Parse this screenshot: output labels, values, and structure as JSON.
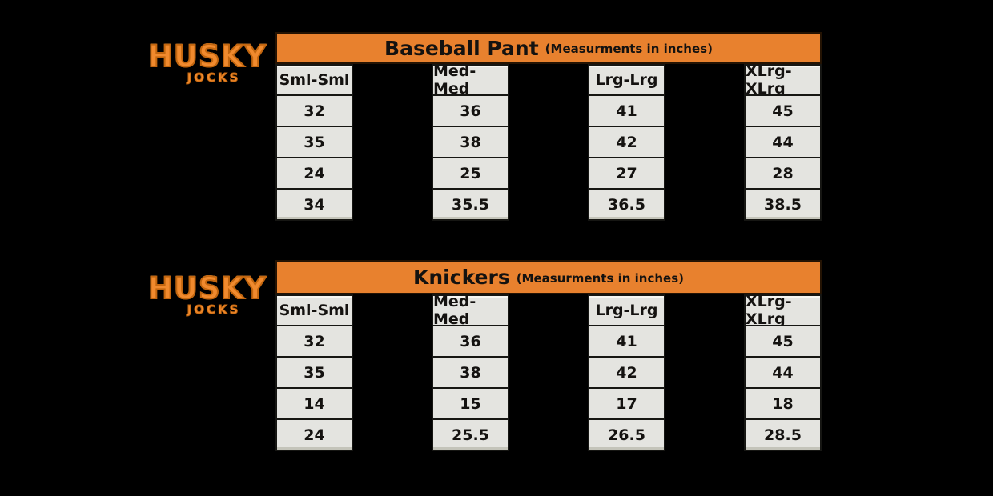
{
  "page": {
    "background": "#000000"
  },
  "brand": {
    "wordmark": "HUSKY",
    "tagline": "JOCKS",
    "color": "#F08A2E",
    "outline_color": "#C2660F"
  },
  "theme": {
    "header_orange": "#E8812E",
    "cell_gray": "#E4E4E0",
    "border_dark": "#161613",
    "text_black": "#141210"
  },
  "chart_data": [
    {
      "type": "table",
      "title": "Baseball Pant",
      "subtitle": "(Measurments in inches)",
      "columns": [
        "Sml-Sml",
        "Med-Med",
        "Lrg-Lrg",
        "XLrg-XLrg"
      ],
      "rows": [
        [
          "32",
          "36",
          "41",
          "45"
        ],
        [
          "35",
          "38",
          "42",
          "44"
        ],
        [
          "24",
          "25",
          "27",
          "28"
        ],
        [
          "34",
          "35.5",
          "36.5",
          "38.5"
        ]
      ]
    },
    {
      "type": "table",
      "title": "Knickers",
      "subtitle": "(Measurments in inches)",
      "columns": [
        "Sml-Sml",
        "Med-Med",
        "Lrg-Lrg",
        "XLrg-XLrg"
      ],
      "rows": [
        [
          "32",
          "36",
          "41",
          "45"
        ],
        [
          "35",
          "38",
          "42",
          "44"
        ],
        [
          "14",
          "15",
          "17",
          "18"
        ],
        [
          "24",
          "25.5",
          "26.5",
          "28.5"
        ]
      ]
    }
  ]
}
